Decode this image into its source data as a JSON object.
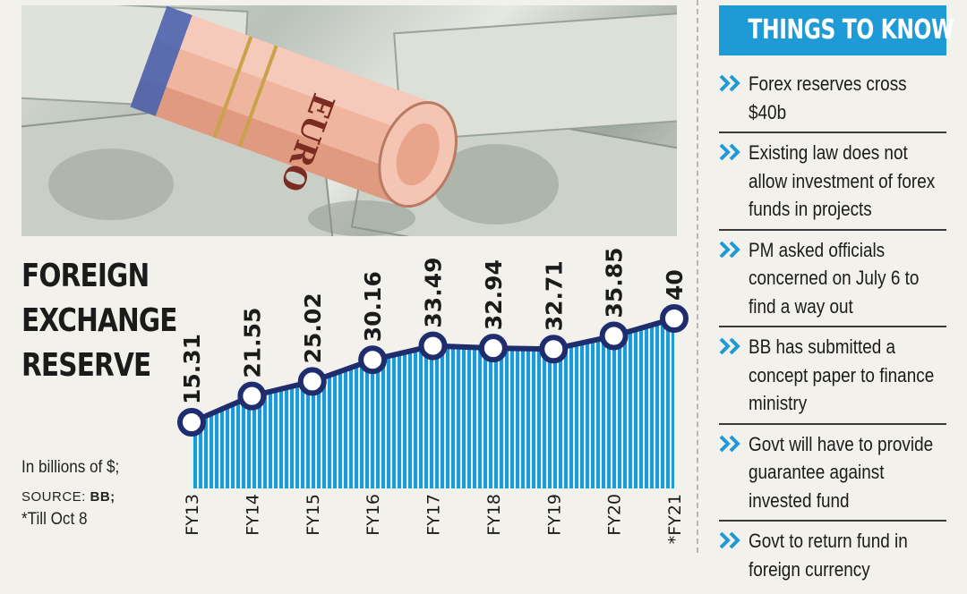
{
  "chart_data": {
    "type": "area",
    "title": "FOREIGN EXCHANGE RESERVE",
    "categories": [
      "FY13",
      "FY14",
      "FY15",
      "FY16",
      "FY17",
      "FY18",
      "FY19",
      "FY20",
      "*FY21"
    ],
    "values": [
      15.31,
      21.55,
      25.02,
      30.16,
      33.49,
      32.94,
      32.71,
      35.85,
      40
    ],
    "value_labels": [
      "15.31",
      "21.55",
      "25.02",
      "30.16",
      "33.49",
      "32.94",
      "32.71",
      "35.85",
      "40"
    ],
    "unit_note": "In billions of $;",
    "source_label": "SOURCE:",
    "source_value": "BB;",
    "footnote": "*Till Oct 8",
    "colors": {
      "area": "#1e9ad6",
      "line": "#1f2d6e",
      "marker_fill": "#ffffff"
    },
    "grid": false,
    "legend": "none"
  },
  "panel": {
    "title": "THINGS TO KNOW",
    "header_color": "#1e9ad6",
    "bullet_icon": "double-chevron-icon",
    "items": [
      "Forex reserves cross $40b",
      "Existing law does not allow investment of forex funds in projects",
      "PM asked officials concerned on July 6 to find a way out",
      "BB has submitted a concept paper to finance ministry",
      "Govt will have to provide guarantee against invested fund",
      "Govt to return fund in foreign currency"
    ]
  },
  "photo": {
    "note_text": "EURO"
  }
}
